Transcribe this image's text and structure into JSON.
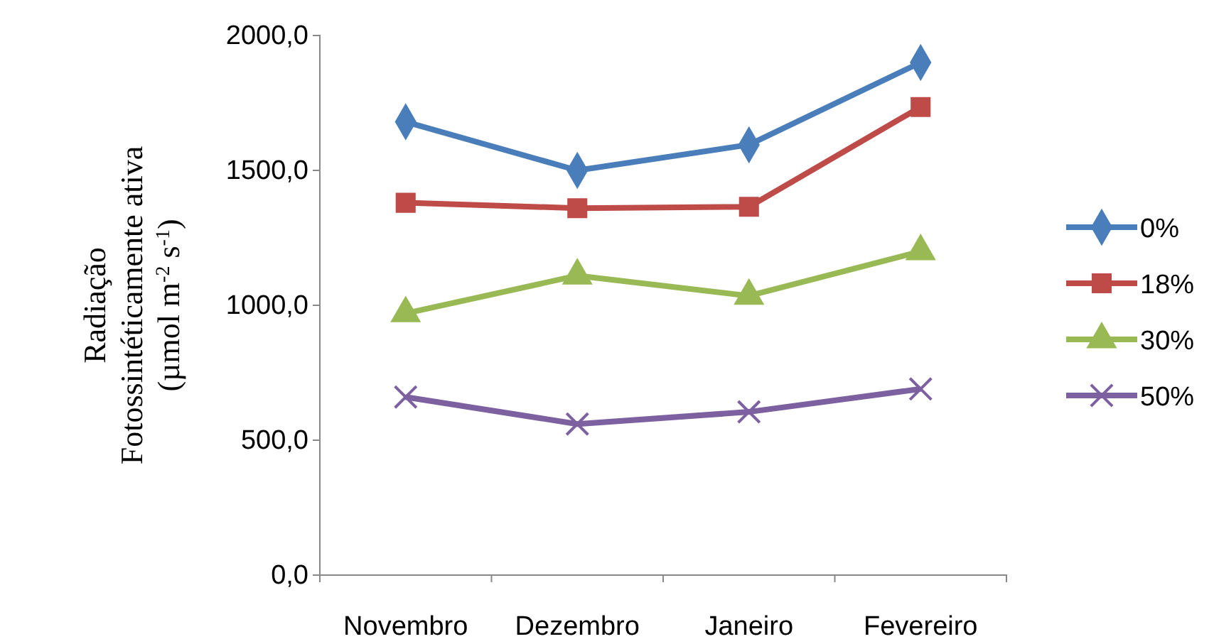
{
  "chart_data": {
    "type": "line",
    "ylabel": "Radiação Fotossintéticamente ativa (µmol m$^{-2}$ s$^{-1}$)",
    "categories": [
      "Novembro",
      "Dezembro",
      "Janeiro",
      "Fevereiro"
    ],
    "series": [
      {
        "name": "0%",
        "color": "#4a7ebb",
        "marker": "diamond",
        "values": [
          1680,
          1500,
          1595,
          1900
        ]
      },
      {
        "name": "18%",
        "color": "#be4b48",
        "marker": "square",
        "values": [
          1380,
          1360,
          1365,
          1735
        ]
      },
      {
        "name": "30%",
        "color": "#98b954",
        "marker": "triangle",
        "values": [
          970,
          1110,
          1035,
          1200
        ]
      },
      {
        "name": "50%",
        "color": "#7d60a0",
        "marker": "cross",
        "values": [
          660,
          560,
          605,
          690
        ]
      }
    ],
    "ylim": [
      0,
      2000
    ],
    "yticks": [
      {
        "value": 0,
        "label": "0,0"
      },
      {
        "value": 500,
        "label": "500,0"
      },
      {
        "value": 1000,
        "label": "1000,0"
      },
      {
        "value": 1500,
        "label": "1500,0"
      },
      {
        "value": 2000,
        "label": "2000,0"
      }
    ],
    "grid": false,
    "legend": "right",
    "line_style": "solid"
  }
}
